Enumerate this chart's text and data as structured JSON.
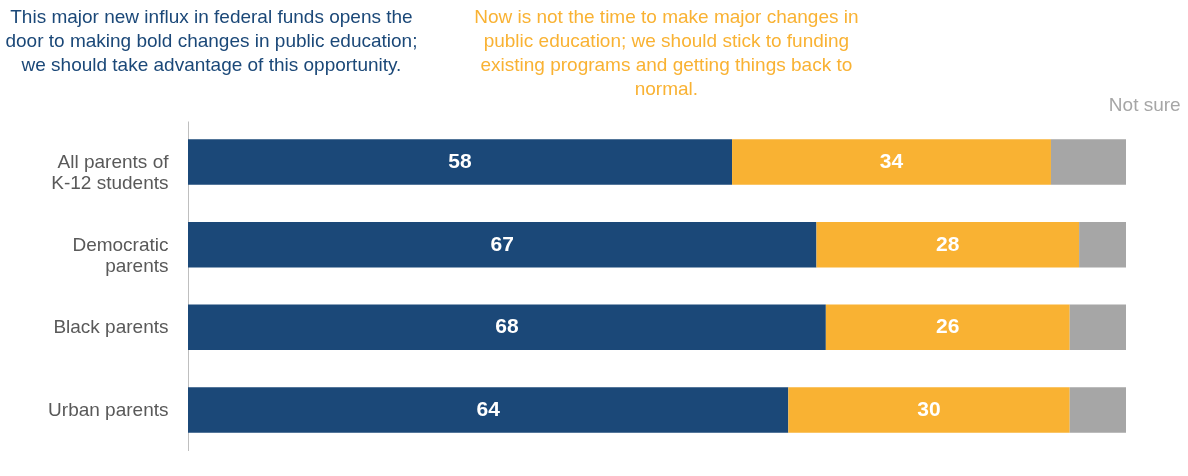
{
  "chart_data": {
    "type": "bar",
    "orientation": "horizontal",
    "stacked": true,
    "legend": "top",
    "tick_labels": "y",
    "xlim": [
      0,
      100
    ],
    "categories": [
      "All parents of K-12 students",
      "Democratic parents",
      "Black parents",
      "Urban parents"
    ],
    "series": [
      {
        "name": "This major new influx in federal funds opens the door to making bold changes in public education; we should take advantage of this opportunity.",
        "color": "#1b4878",
        "values": [
          58,
          67,
          68,
          64
        ],
        "value_labels": [
          "58",
          "67",
          "68",
          "64"
        ]
      },
      {
        "name": "Now is not the time to make major changes in public education; we should stick to funding existing programs and getting things back to normal.",
        "color": "#f9b233",
        "values": [
          34,
          28,
          26,
          30
        ],
        "value_labels": [
          "34",
          "28",
          "26",
          "30"
        ]
      },
      {
        "name": "Not sure",
        "color": "#a6a6a6",
        "values": [
          8,
          5,
          6,
          6
        ],
        "value_labels": [
          null,
          null,
          null,
          null
        ]
      }
    ]
  }
}
